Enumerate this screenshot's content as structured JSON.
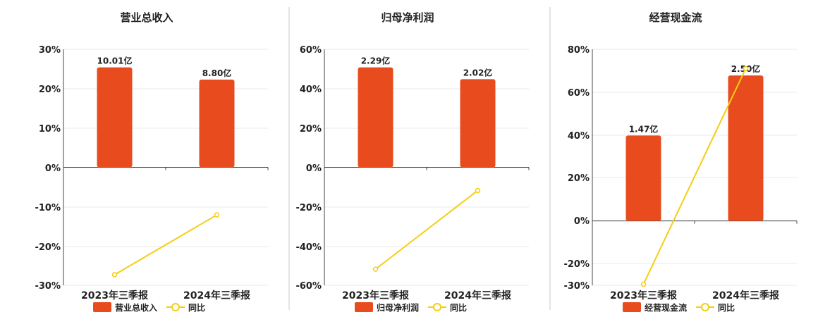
{
  "bar_color": "#E84C1E",
  "line_color": "#F5CE12",
  "divider_color": "#C8C8C8",
  "grid_color": "#E8E8E8",
  "chart_data": [
    {
      "type": "bar",
      "title": "营业总收入",
      "categories": [
        "2023年三季报",
        "2024年三季报"
      ],
      "series": [
        {
          "name": "营业总收入",
          "kind": "bar",
          "values": [
            25.4,
            22.3
          ],
          "labels": [
            "10.01亿",
            "8.80亿"
          ]
        },
        {
          "name": "同比",
          "kind": "line",
          "values": [
            -27.3,
            -12.1
          ]
        }
      ],
      "yticks": [
        "30%",
        "20%",
        "10%",
        "0%",
        "-10%",
        "-20%",
        "-30%"
      ],
      "ylim": [
        -30,
        30
      ],
      "grid": true,
      "legend": "bottom"
    },
    {
      "type": "bar",
      "title": "归母净利润",
      "categories": [
        "2023年三季报",
        "2024年三季报"
      ],
      "series": [
        {
          "name": "归母净利润",
          "kind": "bar",
          "values": [
            50.8,
            44.8
          ],
          "labels": [
            "2.29亿",
            "2.02亿"
          ]
        },
        {
          "name": "同比",
          "kind": "line",
          "values": [
            -51.8,
            -11.8
          ]
        }
      ],
      "yticks": [
        "60%",
        "40%",
        "20%",
        "0%",
        "-20%",
        "-40%",
        "-60%"
      ],
      "ylim": [
        -60,
        60
      ],
      "grid": true,
      "legend": "bottom"
    },
    {
      "type": "bar",
      "title": "经营现金流",
      "categories": [
        "2023年三季报",
        "2024年三季报"
      ],
      "series": [
        {
          "name": "经营现金流",
          "kind": "bar",
          "values": [
            39.8,
            67.8
          ],
          "labels": [
            "1.47亿",
            "2.50亿"
          ]
        },
        {
          "name": "同比",
          "kind": "line",
          "values": [
            -29.5,
            71.0
          ]
        }
      ],
      "yticks": [
        "80%",
        "60%",
        "40%",
        "20%",
        "0%",
        "-20%",
        "-30%"
      ],
      "ytick_values": [
        80,
        60,
        40,
        20,
        0,
        -20,
        -30
      ],
      "ylim": [
        -30,
        80
      ],
      "grid": true,
      "legend": "bottom"
    }
  ]
}
